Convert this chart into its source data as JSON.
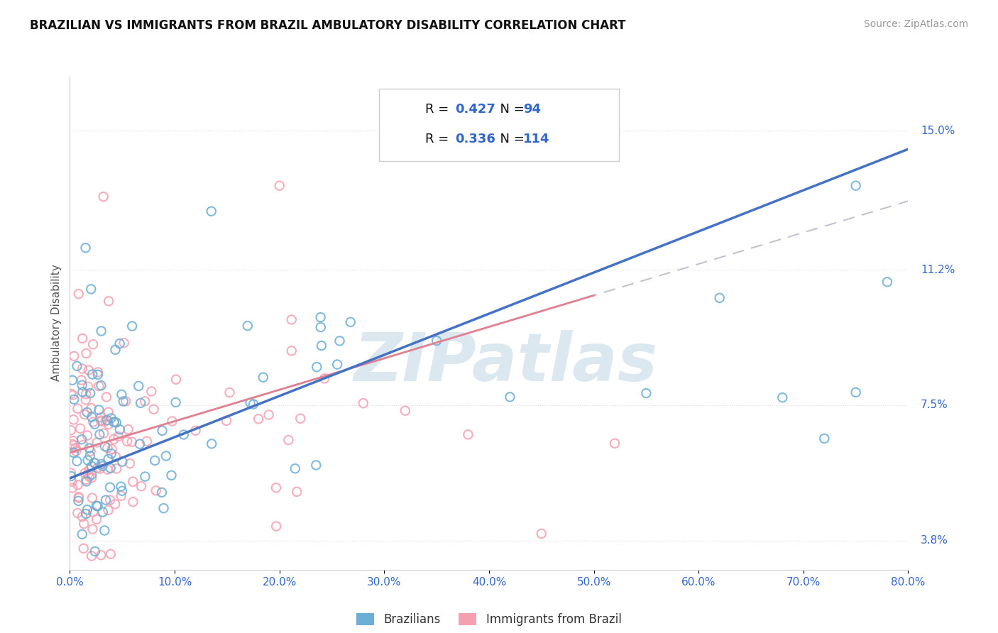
{
  "title": "BRAZILIAN VS IMMIGRANTS FROM BRAZIL AMBULATORY DISABILITY CORRELATION CHART",
  "source": "Source: ZipAtlas.com",
  "ylabel": "Ambulatory Disability",
  "legend_label_1": "Brazilians",
  "legend_label_2": "Immigrants from Brazil",
  "r1": "0.427",
  "n1": "94",
  "r2": "0.336",
  "n2": "114",
  "xlim": [
    0.0,
    80.0
  ],
  "ylim": [
    3.0,
    16.5
  ],
  "yticks": [
    3.8,
    7.5,
    11.2,
    15.0
  ],
  "xticks": [
    0.0,
    10.0,
    20.0,
    30.0,
    40.0,
    50.0,
    60.0,
    70.0,
    80.0
  ],
  "color_blue": "#6baed6",
  "color_pink": "#f4a0b0",
  "trendline_blue": "#4472c4",
  "trendline_pink": "#e08090",
  "trendline_gray_dashed": "#c8c0d0",
  "watermark_color": "#dce8f0",
  "grid_color": "#e0e0e0",
  "fig_bg": "#ffffff",
  "blue_trend": [
    5.5,
    14.5
  ],
  "pink_trend_x": [
    0,
    50
  ],
  "pink_trend_y": [
    6.2,
    10.5
  ]
}
